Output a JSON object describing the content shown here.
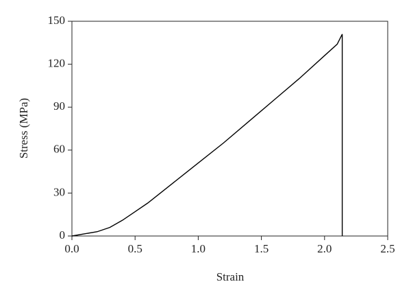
{
  "chart_data": {
    "type": "line",
    "x_label": "Strain",
    "y_label": "Stress (MPa)",
    "x": [
      0,
      0.1,
      0.2,
      0.3,
      0.4,
      0.5,
      0.6,
      0.7,
      0.8,
      0.9,
      1.0,
      1.2,
      1.4,
      1.6,
      1.8,
      2.0,
      2.1,
      2.14,
      2.14
    ],
    "series": [
      {
        "name": "Stress",
        "color": "#000000",
        "values": [
          0,
          1.5,
          3,
          6,
          11,
          17,
          23,
          30,
          37,
          44,
          51,
          65,
          80,
          95,
          110,
          126,
          134,
          141,
          0
        ]
      }
    ],
    "xlim": [
      0,
      2.5
    ],
    "xticks": [
      {
        "value": 0,
        "label": "0.0"
      },
      0.5,
      {
        "value": 1,
        "label": "1.0"
      },
      1.5,
      {
        "value": 2,
        "label": "2.0"
      },
      2.5
    ],
    "ylim": [
      0,
      150
    ],
    "yticks": [
      0,
      30,
      60,
      90,
      120,
      150
    ],
    "grid": false
  }
}
